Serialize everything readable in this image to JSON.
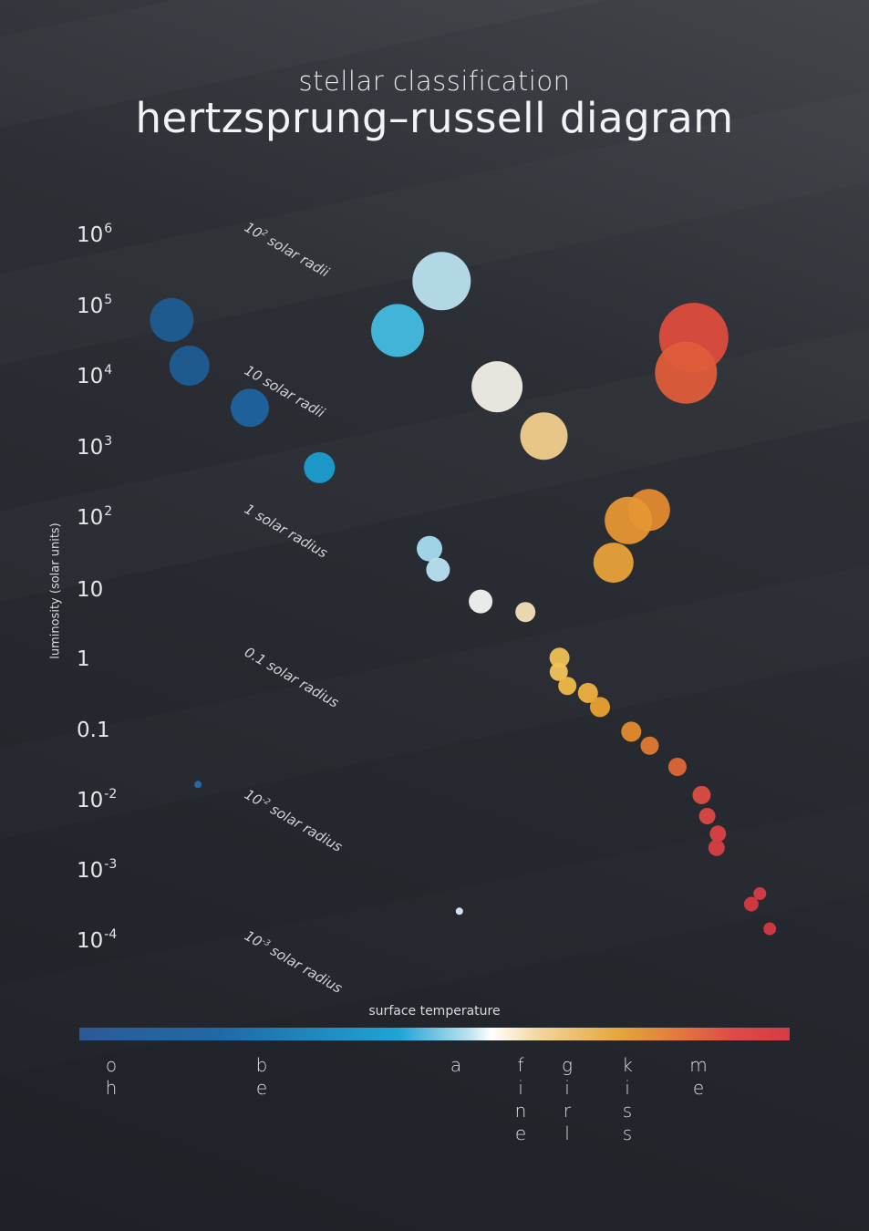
{
  "header": {
    "subtitle": "stellar classification",
    "title": "hertzsprung–russell diagram"
  },
  "colors": {
    "background_top": "#42454a",
    "background_bottom": "#1e2127",
    "text": "#e6e8ea"
  },
  "chart_data": {
    "type": "scatter",
    "title": "hertzsprung–russell diagram",
    "ylabel": "luminosity (solar units)",
    "xlabel": "surface temperature",
    "y_scale": "log",
    "ylim": [
      0.0001,
      1000000
    ],
    "y_ticks": [
      {
        "base": "10",
        "exp": "6"
      },
      {
        "base": "10",
        "exp": "5"
      },
      {
        "base": "10",
        "exp": "4"
      },
      {
        "base": "10",
        "exp": "3"
      },
      {
        "base": "10",
        "exp": "2"
      },
      {
        "base": "10",
        "exp": ""
      },
      {
        "base": "1",
        "exp": ""
      },
      {
        "base": "0.1",
        "exp": ""
      },
      {
        "base": "10",
        "exp": "-2"
      },
      {
        "base": "10",
        "exp": "-3"
      },
      {
        "base": "10",
        "exp": "-4"
      }
    ],
    "radius_lines": [
      {
        "base": "10",
        "exp": "2",
        "text": " solar radii"
      },
      {
        "base": "10",
        "exp": "",
        "text": " solar radii"
      },
      {
        "base": "1",
        "exp": "",
        "text": " solar radius"
      },
      {
        "base": "0.1",
        "exp": "",
        "text": " solar radius"
      },
      {
        "base": "10",
        "exp": "-2",
        "text": " solar radius"
      },
      {
        "base": "10",
        "exp": "-3",
        "text": " solar radius"
      }
    ],
    "spectral_classes": [
      {
        "class": "o",
        "word": "oh"
      },
      {
        "class": "b",
        "word": "be"
      },
      {
        "class": "a",
        "word": "a"
      },
      {
        "class": "f",
        "word": "fine"
      },
      {
        "class": "g",
        "word": "girl"
      },
      {
        "class": "k",
        "word": "kiss"
      },
      {
        "class": "m",
        "word": "me"
      }
    ],
    "temperature_position_range": [
      0,
      1
    ],
    "stars": [
      {
        "t": 0.13,
        "log_l": 4.85,
        "r": 24,
        "color": "#1f5d94"
      },
      {
        "t": 0.155,
        "log_l": 4.2,
        "r": 22,
        "color": "#1f5d94"
      },
      {
        "t": 0.24,
        "log_l": 3.6,
        "r": 21,
        "color": "#1e64a0"
      },
      {
        "t": 0.338,
        "log_l": 2.75,
        "r": 17,
        "color": "#1b9ed1"
      },
      {
        "t": 0.51,
        "log_l": 5.4,
        "r": 32,
        "color": "#b9e1ef"
      },
      {
        "t": 0.448,
        "log_l": 4.7,
        "r": 29,
        "color": "#42bce0"
      },
      {
        "t": 0.588,
        "log_l": 3.9,
        "r": 28,
        "color": "#f2efe8"
      },
      {
        "t": 0.654,
        "log_l": 3.2,
        "r": 26,
        "color": "#f1cf8c"
      },
      {
        "t": 0.865,
        "log_l": 4.6,
        "r": 38,
        "color": "#dd4c3c"
      },
      {
        "t": 0.854,
        "log_l": 4.1,
        "r": 34,
        "color": "#df5c39"
      },
      {
        "t": 0.802,
        "log_l": 2.15,
        "r": 23,
        "color": "#e3892e"
      },
      {
        "t": 0.773,
        "log_l": 2.0,
        "r": 26,
        "color": "#e79634"
      },
      {
        "t": 0.752,
        "log_l": 1.4,
        "r": 22,
        "color": "#e8a23a"
      },
      {
        "t": 0.493,
        "log_l": 1.6,
        "r": 14,
        "color": "#a7dcf0"
      },
      {
        "t": 0.505,
        "log_l": 1.3,
        "r": 13,
        "color": "#b9e3f2"
      },
      {
        "t": 0.565,
        "log_l": 0.85,
        "r": 13,
        "color": "#f3f4f4"
      },
      {
        "t": 0.628,
        "log_l": 0.7,
        "r": 11,
        "color": "#f4dfb6"
      },
      {
        "t": 0.676,
        "log_l": 0.05,
        "r": 11,
        "color": "#f0c056"
      },
      {
        "t": 0.675,
        "log_l": -0.15,
        "r": 10,
        "color": "#f1c35a"
      },
      {
        "t": 0.687,
        "log_l": -0.35,
        "r": 10,
        "color": "#f0b847"
      },
      {
        "t": 0.716,
        "log_l": -0.45,
        "r": 11,
        "color": "#eeb040"
      },
      {
        "t": 0.733,
        "log_l": -0.65,
        "r": 11,
        "color": "#e9a130"
      },
      {
        "t": 0.777,
        "log_l": -1.0,
        "r": 11,
        "color": "#e48b2c"
      },
      {
        "t": 0.803,
        "log_l": -1.2,
        "r": 10,
        "color": "#e07a31"
      },
      {
        "t": 0.842,
        "log_l": -1.5,
        "r": 10,
        "color": "#de6637"
      },
      {
        "t": 0.876,
        "log_l": -1.9,
        "r": 10,
        "color": "#dd4d42"
      },
      {
        "t": 0.884,
        "log_l": -2.2,
        "r": 9,
        "color": "#dc4744"
      },
      {
        "t": 0.899,
        "log_l": -2.45,
        "r": 9,
        "color": "#db4145"
      },
      {
        "t": 0.897,
        "log_l": -2.65,
        "r": 9,
        "color": "#d93e44"
      },
      {
        "t": 0.958,
        "log_l": -3.3,
        "r": 7,
        "color": "#d73c43"
      },
      {
        "t": 0.946,
        "log_l": -3.45,
        "r": 8,
        "color": "#d53a42"
      },
      {
        "t": 0.972,
        "log_l": -3.8,
        "r": 7,
        "color": "#d33943"
      },
      {
        "t": 0.167,
        "log_l": -1.75,
        "r": 4,
        "color": "#2a6aa6"
      },
      {
        "t": 0.535,
        "log_l": -3.55,
        "r": 4,
        "color": "#d6eef7"
      }
    ]
  }
}
